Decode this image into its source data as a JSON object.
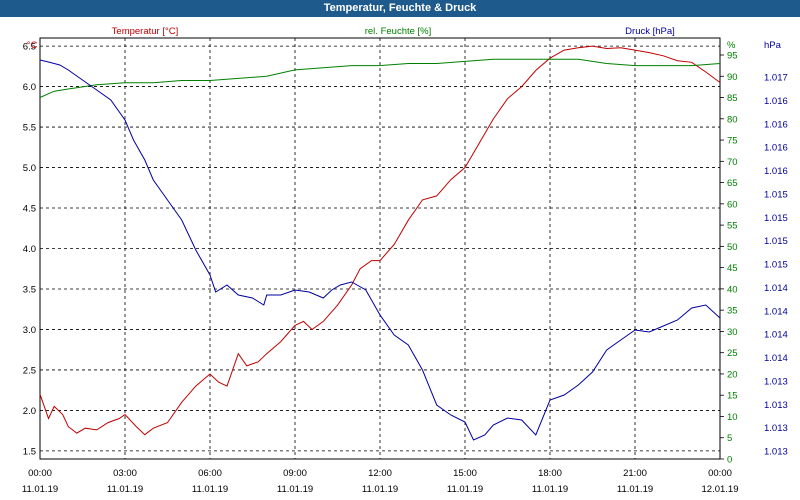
{
  "window": {
    "title": "Temperatur, Feuchte & Druck"
  },
  "chart_data": {
    "type": "line",
    "title": "Temperatur, Feuchte & Druck",
    "grid": true,
    "x_ticks": [
      {
        "time": "00:00",
        "date": "11.01.19"
      },
      {
        "time": "03:00",
        "date": "11.01.19"
      },
      {
        "time": "06:00",
        "date": "11.01.19"
      },
      {
        "time": "09:00",
        "date": "11.01.19"
      },
      {
        "time": "12:00",
        "date": "11.01.19"
      },
      {
        "time": "15:00",
        "date": "11.01.19"
      },
      {
        "time": "18:00",
        "date": "11.01.19"
      },
      {
        "time": "21:00",
        "date": "11.01.19"
      },
      {
        "time": "00:00",
        "date": "12.01.19"
      }
    ],
    "x_range_hours": [
      0,
      24
    ],
    "axes": {
      "temperature": {
        "unit": "°C",
        "range": [
          1.4,
          6.6
        ],
        "ticks": [
          "6.5",
          "6.0",
          "5.5",
          "5.0",
          "4.5",
          "4.0",
          "3.5",
          "3.0",
          "2.5",
          "2.0",
          "1.5"
        ],
        "color": "#c00000"
      },
      "humidity": {
        "unit": "%",
        "range": [
          0,
          99
        ],
        "ticks": [
          "95",
          "90",
          "85",
          "80",
          "75",
          "70",
          "65",
          "60",
          "55",
          "50",
          "45",
          "40",
          "35",
          "30",
          "25",
          "20",
          "15",
          "10",
          "5",
          "0"
        ],
        "color": "#008000"
      },
      "pressure": {
        "unit": "hPa",
        "ticks": [
          "1.017",
          "1.016",
          "1.016",
          "1.016",
          "1.016",
          "1.015",
          "1.015",
          "1.015",
          "1.015",
          "1.014",
          "1.014",
          "1.014",
          "1.014",
          "1.013",
          "1.013",
          "1.013",
          "1.013"
        ],
        "color": "#0000a0"
      }
    },
    "series": [
      {
        "name": "Temperatur [°C]",
        "axis": "temperature",
        "color": "#c00000",
        "points": [
          [
            0,
            2.2
          ],
          [
            0.3,
            1.9
          ],
          [
            0.5,
            2.05
          ],
          [
            0.8,
            1.95
          ],
          [
            1,
            1.8
          ],
          [
            1.3,
            1.72
          ],
          [
            1.6,
            1.78
          ],
          [
            2,
            1.76
          ],
          [
            2.4,
            1.85
          ],
          [
            2.8,
            1.9
          ],
          [
            3,
            1.95
          ],
          [
            3.4,
            1.8
          ],
          [
            3.7,
            1.7
          ],
          [
            4,
            1.78
          ],
          [
            4.5,
            1.85
          ],
          [
            5,
            2.1
          ],
          [
            5.5,
            2.3
          ],
          [
            6,
            2.45
          ],
          [
            6.3,
            2.35
          ],
          [
            6.6,
            2.3
          ],
          [
            7,
            2.7
          ],
          [
            7.3,
            2.55
          ],
          [
            7.7,
            2.6
          ],
          [
            8,
            2.7
          ],
          [
            8.5,
            2.85
          ],
          [
            9,
            3.05
          ],
          [
            9.3,
            3.1
          ],
          [
            9.6,
            3.0
          ],
          [
            10,
            3.1
          ],
          [
            10.5,
            3.3
          ],
          [
            11,
            3.55
          ],
          [
            11.3,
            3.75
          ],
          [
            11.7,
            3.85
          ],
          [
            12,
            3.85
          ],
          [
            12.5,
            4.05
          ],
          [
            13,
            4.35
          ],
          [
            13.5,
            4.6
          ],
          [
            14,
            4.65
          ],
          [
            14.5,
            4.85
          ],
          [
            15,
            5.0
          ],
          [
            15.5,
            5.3
          ],
          [
            16,
            5.6
          ],
          [
            16.5,
            5.85
          ],
          [
            17,
            6.0
          ],
          [
            17.5,
            6.2
          ],
          [
            18,
            6.35
          ],
          [
            18.5,
            6.45
          ],
          [
            19,
            6.48
          ],
          [
            19.5,
            6.5
          ],
          [
            20,
            6.47
          ],
          [
            20.5,
            6.48
          ],
          [
            21,
            6.45
          ],
          [
            21.5,
            6.42
          ],
          [
            22,
            6.38
          ],
          [
            22.5,
            6.32
          ],
          [
            23,
            6.3
          ],
          [
            23.5,
            6.18
          ],
          [
            24,
            6.05
          ]
        ]
      },
      {
        "name": "rel. Feuchte [%]",
        "axis": "humidity",
        "color": "#008000",
        "points": [
          [
            0,
            85
          ],
          [
            0.5,
            86.5
          ],
          [
            1,
            87
          ],
          [
            1.5,
            87.5
          ],
          [
            2,
            88
          ],
          [
            3,
            88.5
          ],
          [
            4,
            88.5
          ],
          [
            5,
            89
          ],
          [
            6,
            89
          ],
          [
            7,
            89.5
          ],
          [
            8,
            90
          ],
          [
            9,
            91.5
          ],
          [
            10,
            92
          ],
          [
            11,
            92.5
          ],
          [
            12,
            92.5
          ],
          [
            13,
            93
          ],
          [
            14,
            93
          ],
          [
            15,
            93.5
          ],
          [
            16,
            94
          ],
          [
            17,
            94
          ],
          [
            18,
            94
          ],
          [
            19,
            94
          ],
          [
            20,
            93
          ],
          [
            21,
            92.5
          ],
          [
            22,
            92.5
          ],
          [
            23,
            92.5
          ],
          [
            24,
            93
          ]
        ]
      },
      {
        "name": "Druck [hPa]",
        "axis": "pressure",
        "color": "#0000a0",
        "points": [
          [
            0,
            60
          ],
          [
            0.3,
            62
          ],
          [
            0.7,
            65
          ],
          [
            1,
            70
          ],
          [
            1.5,
            80
          ],
          [
            2,
            90
          ],
          [
            2.5,
            100
          ],
          [
            3,
            120
          ],
          [
            3.3,
            140
          ],
          [
            3.7,
            160
          ],
          [
            4,
            180
          ],
          [
            4.5,
            200
          ],
          [
            5,
            220
          ],
          [
            5.5,
            250
          ],
          [
            6,
            275
          ],
          [
            6.2,
            292
          ],
          [
            6.6,
            285
          ],
          [
            7,
            295
          ],
          [
            7.5,
            298
          ],
          [
            7.9,
            305
          ],
          [
            8,
            295
          ],
          [
            8.5,
            295
          ],
          [
            9,
            290
          ],
          [
            9.5,
            292
          ],
          [
            10,
            298
          ],
          [
            10.3,
            290
          ],
          [
            10.6,
            285
          ],
          [
            11,
            282
          ],
          [
            11.5,
            290
          ],
          [
            12,
            315
          ],
          [
            12.5,
            335
          ],
          [
            13,
            345
          ],
          [
            13.5,
            370
          ],
          [
            14,
            405
          ],
          [
            14.5,
            415
          ],
          [
            15,
            422
          ],
          [
            15.3,
            440
          ],
          [
            15.7,
            435
          ],
          [
            16,
            425
          ],
          [
            16.5,
            418
          ],
          [
            17,
            420
          ],
          [
            17.5,
            435
          ],
          [
            18,
            400
          ],
          [
            18.5,
            395
          ],
          [
            19,
            385
          ],
          [
            19.5,
            372
          ],
          [
            20,
            350
          ],
          [
            20.5,
            340
          ],
          [
            21,
            330
          ],
          [
            21.5,
            332
          ],
          [
            22,
            326
          ],
          [
            22.5,
            320
          ],
          [
            23,
            308
          ],
          [
            23.5,
            305
          ],
          [
            24,
            318
          ]
        ]
      }
    ]
  }
}
